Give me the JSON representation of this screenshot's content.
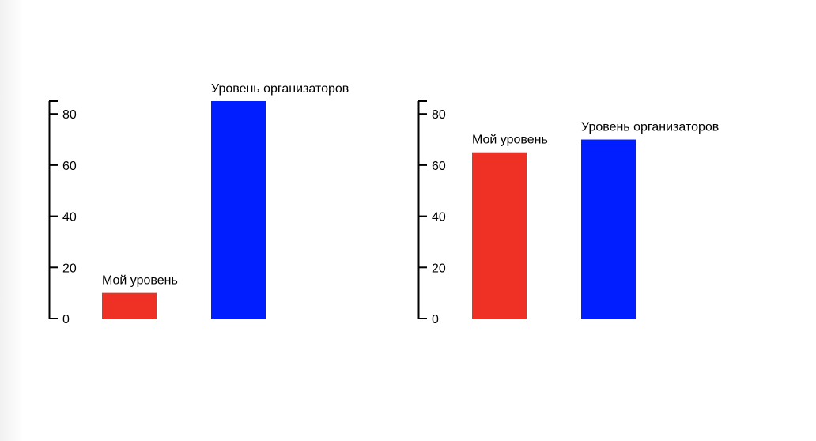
{
  "chart_data": [
    {
      "type": "bar",
      "categories": [
        "Мой уровень",
        "Уровень организаторов"
      ],
      "values": [
        10,
        85
      ],
      "colors": [
        "#ee3124",
        "#001eff"
      ],
      "ylim": [
        0,
        85
      ],
      "yticks": [
        0,
        20,
        40,
        60,
        80
      ],
      "grid": false,
      "legend": "none"
    },
    {
      "type": "bar",
      "categories": [
        "Мой уровень",
        "Уровень организаторов"
      ],
      "values": [
        65,
        70
      ],
      "colors": [
        "#ee3124",
        "#001eff"
      ],
      "ylim": [
        0,
        85
      ],
      "yticks": [
        0,
        20,
        40,
        60,
        80
      ],
      "grid": false,
      "legend": "none"
    }
  ]
}
